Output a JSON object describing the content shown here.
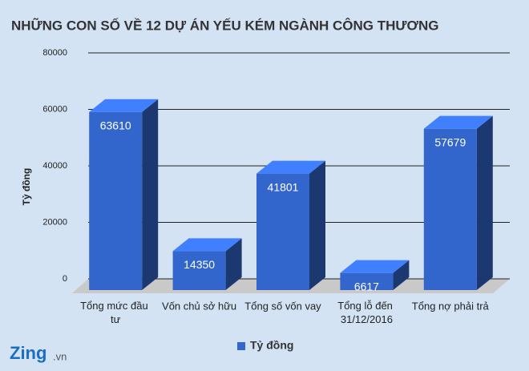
{
  "chart_data": {
    "type": "bar3d",
    "title": "NHỮNG CON SỐ VỀ 12 DỰ ÁN YẾU KÉM NGÀNH CÔNG THƯƠNG",
    "y_label": "Tỷ đồng",
    "categories": [
      "Tổng mức đầu tư",
      "Vốn chủ sở hữu",
      "Tổng số vốn vay",
      "Tổng lỗ đến 31/12/2016",
      "Tổng nợ phải trả"
    ],
    "series": [
      {
        "name": "Tỷ đồng",
        "color": "#3366cc",
        "values": [
          63610,
          14350,
          41801,
          6617,
          57679
        ]
      }
    ],
    "ylim": [
      0,
      80000
    ],
    "yticks": [
      0,
      20000,
      40000,
      60000,
      80000
    ],
    "grid": true,
    "legend": "bottom"
  },
  "watermark": {
    "brand": "Zing",
    "domain": ".vn"
  }
}
